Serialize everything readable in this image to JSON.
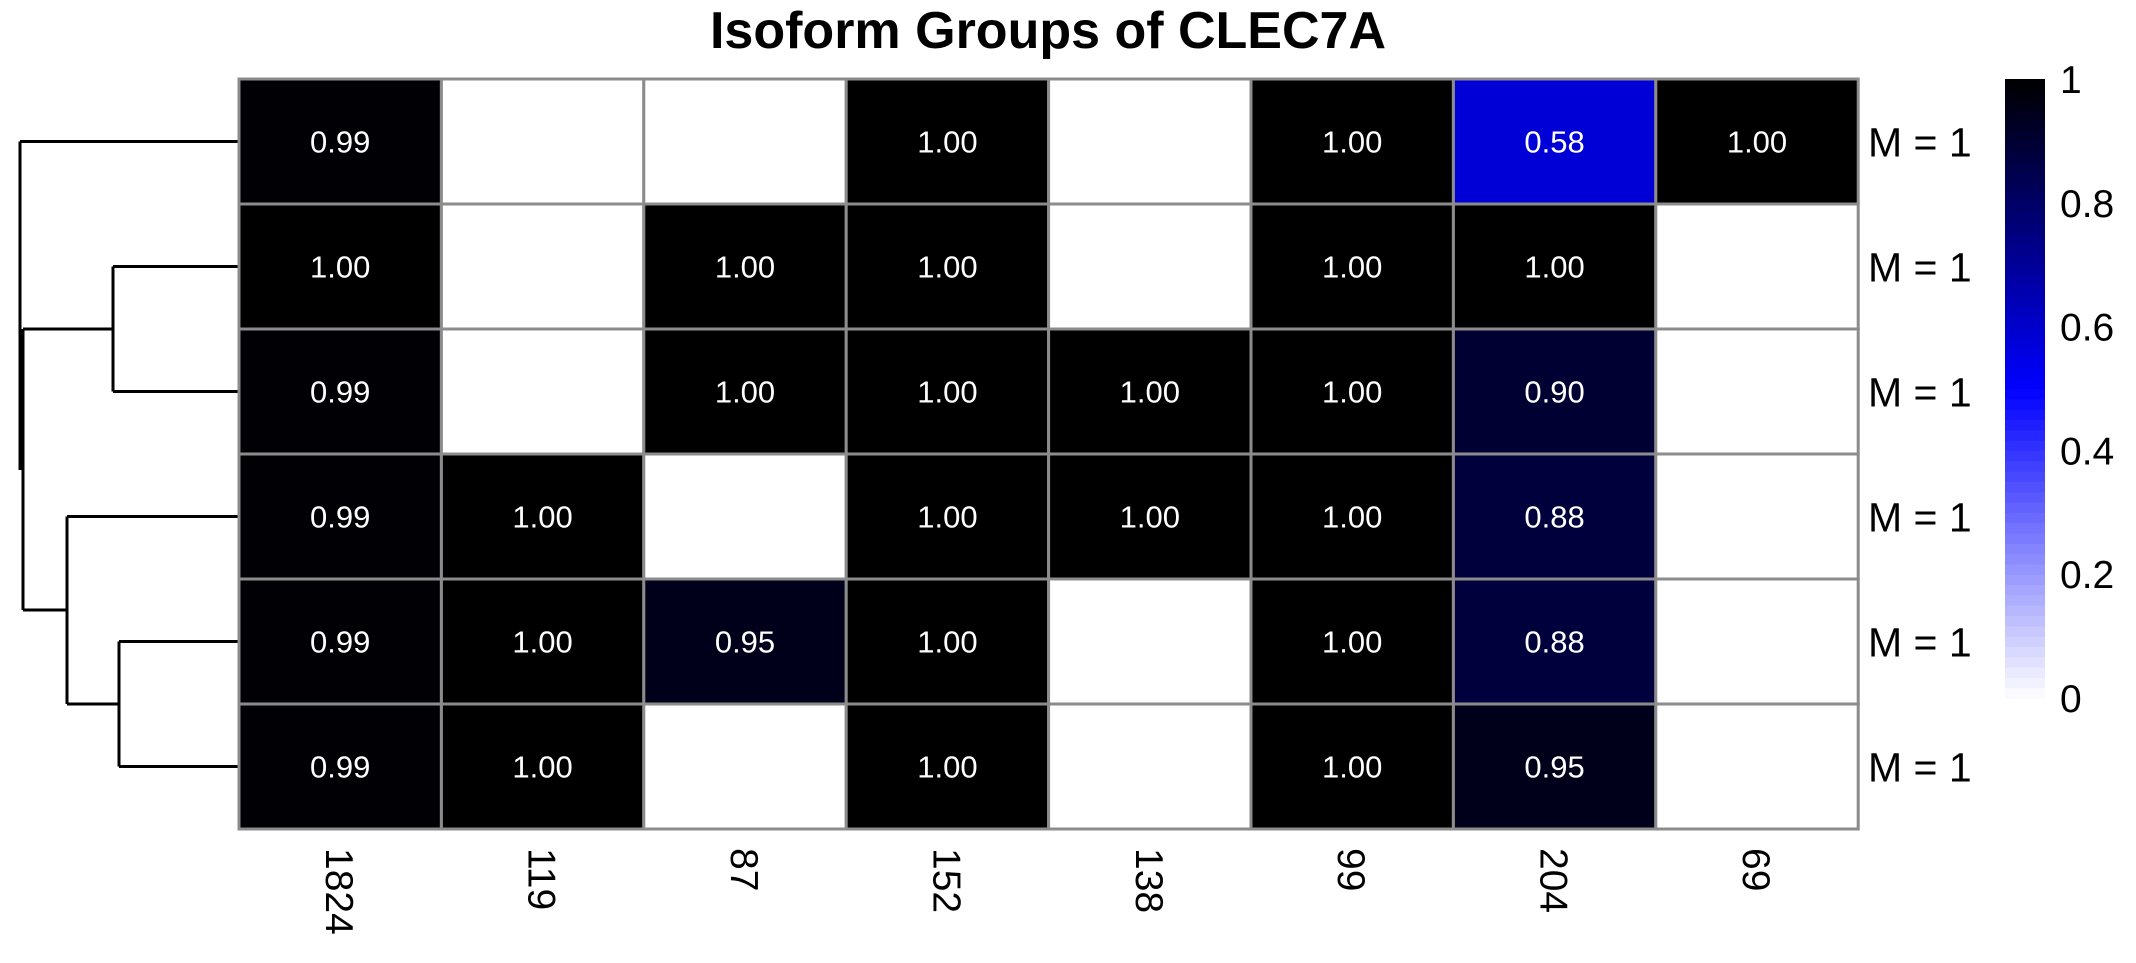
{
  "chart_data": {
    "type": "heatmap",
    "title": "Isoform Groups of CLEC7A",
    "columns": [
      "1824",
      "119",
      "87",
      "152",
      "138",
      "99",
      "204",
      "69"
    ],
    "rows": [
      "M = 1",
      "M = 1",
      "M = 1",
      "M = 1",
      "M = 1",
      "M = 1"
    ],
    "values": [
      [
        "0.99",
        null,
        null,
        "1.00",
        null,
        "1.00",
        "0.58",
        "1.00"
      ],
      [
        "1.00",
        null,
        "1.00",
        "1.00",
        null,
        "1.00",
        "1.00",
        null
      ],
      [
        "0.99",
        null,
        "1.00",
        "1.00",
        "1.00",
        "1.00",
        "0.90",
        null
      ],
      [
        "0.99",
        "1.00",
        null,
        "1.00",
        "1.00",
        "1.00",
        "0.88",
        null
      ],
      [
        "0.99",
        "1.00",
        "0.95",
        "1.00",
        null,
        "1.00",
        "0.88",
        null
      ],
      [
        "0.99",
        "1.00",
        null,
        "1.00",
        null,
        "1.00",
        "0.95",
        null
      ]
    ],
    "colorbar": {
      "ticks": [
        "0",
        "0.2",
        "0.4",
        "0.6",
        "0.8",
        "1"
      ],
      "range": [
        0,
        1
      ],
      "colors": [
        "#ffffff",
        "#0000ff",
        "#000000"
      ]
    },
    "row_dendrogram": true,
    "grid": true
  }
}
